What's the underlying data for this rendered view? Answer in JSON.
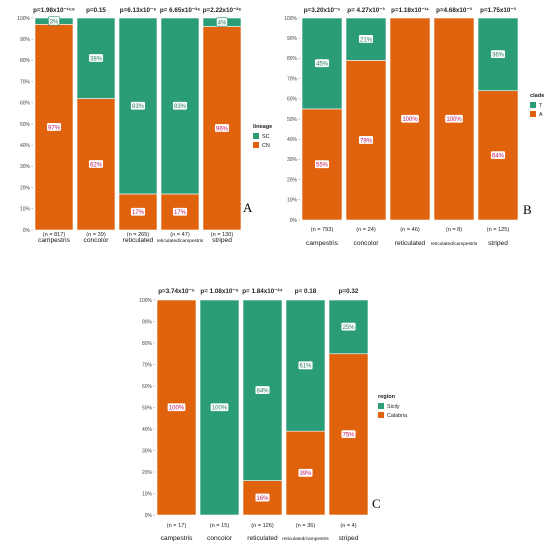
{
  "chart_data": [
    {
      "type": "bar",
      "panel": "A",
      "stacked": true,
      "categories": [
        "campestris",
        "concolor",
        "reticulated",
        "reticulated/campestris",
        "striped"
      ],
      "sample_sizes": [
        "(n = 817)",
        "(n = 39)",
        "(n = 265)",
        "(n = 47)",
        "(n = 130)"
      ],
      "p_values": [
        "p=1.98x10⁻¹⁵⁹",
        "p=0.15",
        "p=6.13x10⁻⁶",
        "p= 6.65x10⁻²⁶",
        "p=2.22x10⁻²⁶"
      ],
      "ylim": [
        0,
        100
      ],
      "yticks": [
        "0%",
        "10%",
        "20%",
        "30%",
        "40%",
        "50%",
        "60%",
        "70%",
        "80%",
        "90%",
        "100%"
      ],
      "legend_title": "lineage",
      "legend_position": "right",
      "series": [
        {
          "name": "CN",
          "color": "#e0620d",
          "values": [
            97,
            62,
            17,
            17,
            96
          ],
          "labels": [
            "97%",
            "62%",
            "17%",
            "17%",
            "96%"
          ]
        },
        {
          "name": "SC",
          "color": "#2a9d78",
          "values": [
            3,
            38,
            83,
            83,
            4
          ],
          "labels": [
            "3%",
            "38%",
            "83%",
            "83%",
            "4%"
          ]
        }
      ]
    },
    {
      "type": "bar",
      "panel": "B",
      "stacked": true,
      "categories": [
        "campestris",
        "concolor",
        "reticulated",
        "reticulated/campestris",
        "striped"
      ],
      "sample_sizes": [
        "(n = 793)",
        "(n = 24)",
        "(n = 46)",
        "(n = 8)",
        "(n = 125)"
      ],
      "p_values": [
        "p=3.20x10⁻⁵",
        "p= 4.27x10⁻³",
        "p=1.18x10⁻¹¹",
        "p=4.68x10⁻³",
        "p=1.75x10⁻³"
      ],
      "ylim": [
        0,
        100
      ],
      "yticks": [
        "0%",
        "10%",
        "20%",
        "30%",
        "40%",
        "50%",
        "60%",
        "70%",
        "80%",
        "90%",
        "100%"
      ],
      "legend_title": "clade",
      "legend_position": "right",
      "series": [
        {
          "name": "A",
          "color": "#e0620d",
          "values": [
            55,
            79,
            100,
            100,
            64
          ],
          "labels": [
            "55%",
            "79%",
            "100%",
            "100%",
            "64%"
          ]
        },
        {
          "name": "T",
          "color": "#2a9d78",
          "values": [
            45,
            21,
            0,
            0,
            36
          ],
          "labels": [
            "45%",
            "21%",
            "",
            "",
            "36%"
          ]
        }
      ]
    },
    {
      "type": "bar",
      "panel": "C",
      "stacked": true,
      "categories": [
        "campestris",
        "concolor",
        "reticulated",
        "reticulated/campestris",
        "striped"
      ],
      "sample_sizes": [
        "(n = 17)",
        "(n = 15)",
        "(n = 126)",
        "(n = 36)",
        "(n = 4)"
      ],
      "p_values": [
        "p=3.74x10⁻⁵",
        "p= 1.08x10⁻⁶",
        "p= 1.84x10⁻²⁴",
        "p= 0.18",
        "p=0.32"
      ],
      "ylim": [
        0,
        100
      ],
      "yticks": [
        "0%",
        "10%",
        "20%",
        "30%",
        "40%",
        "50%",
        "60%",
        "70%",
        "80%",
        "90%",
        "100%"
      ],
      "legend_title": "region",
      "legend_position": "right",
      "series": [
        {
          "name": "Calabria",
          "color": "#e0620d",
          "values": [
            100,
            0,
            16,
            39,
            75
          ],
          "labels": [
            "100%",
            "",
            "16%",
            "39%",
            "75%"
          ]
        },
        {
          "name": "Sicily",
          "color": "#2a9d78",
          "values": [
            0,
            100,
            84,
            61,
            25
          ],
          "labels": [
            "",
            "100%",
            "84%",
            "61%",
            "25%"
          ]
        }
      ]
    }
  ]
}
